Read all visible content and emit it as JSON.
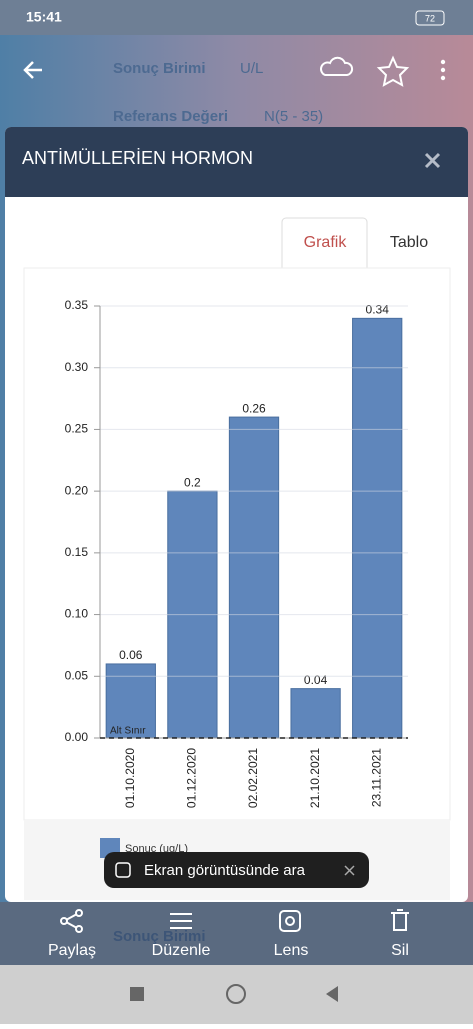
{
  "status_bar": {
    "time": "15:41",
    "battery": "72"
  },
  "background": {
    "unit_label": "Sonuç Birimi",
    "unit_value": "U/L",
    "ref_label": "Referans Değeri",
    "ref_value": "N(5 - 35)",
    "bottom_label": "Sonuç Birimi"
  },
  "modal": {
    "title": "ANTİMÜLLERİEN HORMON",
    "tabs": [
      "Grafik",
      "Tablo"
    ]
  },
  "chart_data": {
    "type": "bar",
    "categories": [
      "01.10.2020",
      "01.12.2020",
      "02.02.2021",
      "21.10.2021",
      "23.11.2021"
    ],
    "series": [
      {
        "name": "Sonuç (ug/L)",
        "color": "#5f86bb",
        "values": [
          0.06,
          0.2,
          0.26,
          0.04,
          0.34
        ]
      }
    ],
    "ylim": [
      0,
      0.35
    ],
    "yticks": [
      {
        "value": 0,
        "label": "0.00"
      },
      0.05,
      {
        "value": 0.1,
        "label": "0.10"
      },
      0.15,
      {
        "value": 0.2,
        "label": "0.20"
      },
      0.25,
      {
        "value": 0.3,
        "label": "0.30"
      },
      0.35
    ],
    "grid": true,
    "annotation": "Alt Sınır"
  },
  "toast": "Ekran görüntüsünde ara",
  "actions": [
    "Paylaş",
    "Düzenle",
    "Lens",
    "Sil"
  ]
}
